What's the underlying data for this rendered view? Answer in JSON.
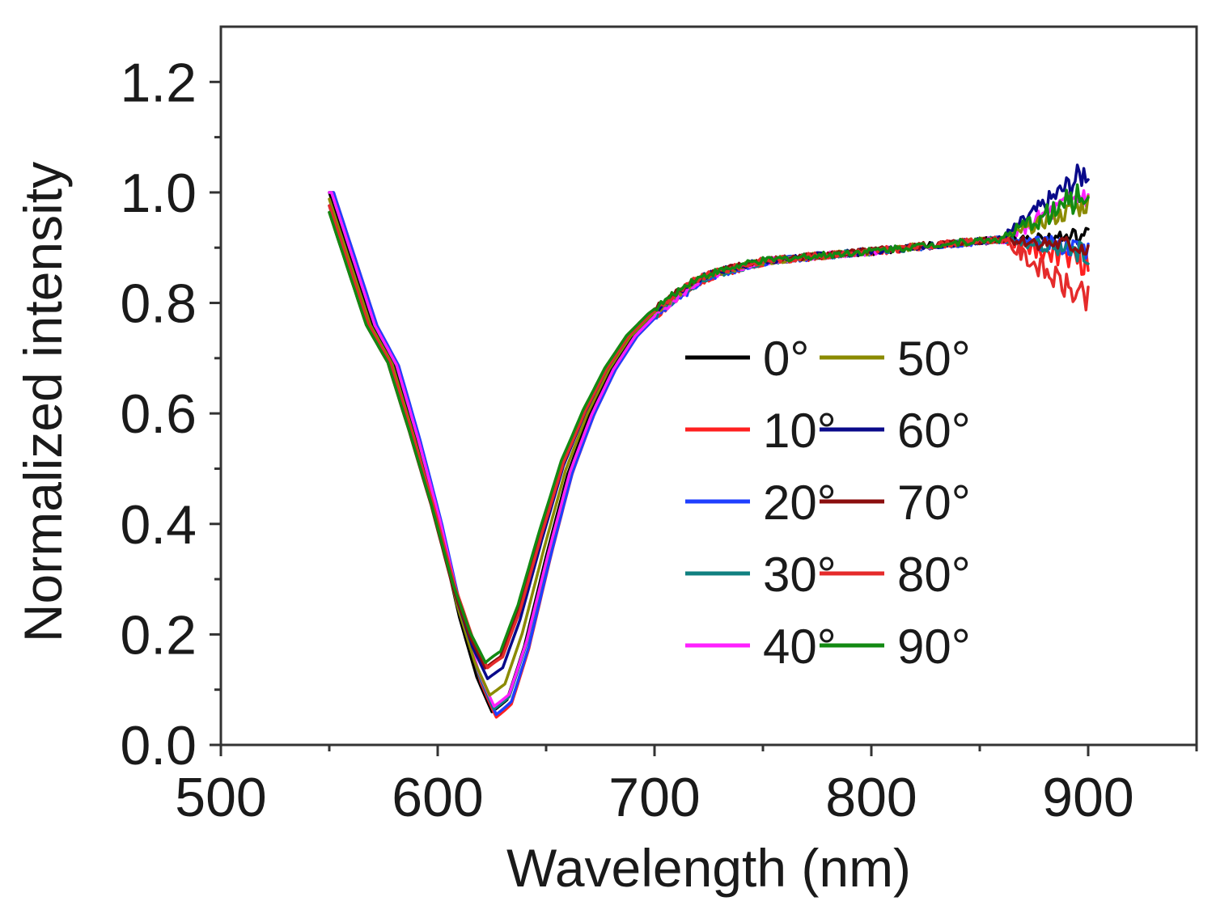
{
  "chart_data": {
    "type": "line",
    "xlabel": "Wavelength (nm)",
    "ylabel": "Normalized intensity",
    "xlim": [
      500,
      950
    ],
    "ylim": [
      0.0,
      1.3
    ],
    "xticks": [
      500,
      600,
      700,
      800,
      900
    ],
    "xtick_labels": [
      "500",
      "600",
      "700",
      "800",
      "900"
    ],
    "xminor_ticks": [
      550,
      650,
      750,
      850,
      950
    ],
    "yticks": [
      0.0,
      0.2,
      0.4,
      0.6,
      0.8,
      1.0,
      1.2
    ],
    "ytick_labels": [
      "0.0",
      "0.2",
      "0.4",
      "0.6",
      "0.8",
      "1.0",
      "1.2"
    ],
    "yminor_ticks": [
      0.1,
      0.3,
      0.5,
      0.7,
      0.9,
      1.1
    ],
    "legend_position": "center-right",
    "series": [
      {
        "name": "0°",
        "color": "#000000",
        "shift": 0,
        "min_value": 0.06,
        "tail_end": 0.92,
        "tail_noise": 0.012,
        "tail_drift": 0.0,
        "seed": 1
      },
      {
        "name": "10°",
        "color": "#ff2020",
        "shift": 2,
        "min_value": 0.05,
        "tail_end": 0.87,
        "tail_noise": 0.018,
        "tail_drift": 0.0,
        "seed": 2
      },
      {
        "name": "20°",
        "color": "#1f3fff",
        "shift": 2,
        "min_value": 0.055,
        "tail_end": 0.9,
        "tail_noise": 0.015,
        "tail_drift": 0.0,
        "seed": 3
      },
      {
        "name": "30°",
        "color": "#108080",
        "shift": 1,
        "min_value": 0.065,
        "tail_end": 0.89,
        "tail_noise": 0.015,
        "tail_drift": 0.0,
        "seed": 4
      },
      {
        "name": "40°",
        "color": "#ff20ff",
        "shift": 1,
        "min_value": 0.07,
        "tail_end": 1.0,
        "tail_noise": 0.02,
        "tail_drift": 0.0,
        "seed": 5
      },
      {
        "name": "50°",
        "color": "#8b8b00",
        "shift": -1,
        "min_value": 0.09,
        "tail_end": 0.98,
        "tail_noise": 0.015,
        "tail_drift": 0.0,
        "seed": 6
      },
      {
        "name": "60°",
        "color": "#0a0a8a",
        "shift": -2,
        "min_value": 0.12,
        "tail_end": 1.04,
        "tail_noise": 0.02,
        "tail_drift": 0.0,
        "seed": 7
      },
      {
        "name": "70°",
        "color": "#8b0e0e",
        "shift": -3,
        "min_value": 0.14,
        "tail_end": 0.9,
        "tail_noise": 0.015,
        "tail_drift": 0.0,
        "seed": 8
      },
      {
        "name": "80°",
        "color": "#e52b2b",
        "shift": -2,
        "min_value": 0.14,
        "tail_end": 0.8,
        "tail_noise": 0.022,
        "tail_drift": -0.09,
        "seed": 9
      },
      {
        "name": "90°",
        "color": "#128a12",
        "shift": -3,
        "min_value": 0.15,
        "tail_end": 1.0,
        "tail_noise": 0.022,
        "tail_drift": 0.0,
        "seed": 10
      }
    ]
  }
}
